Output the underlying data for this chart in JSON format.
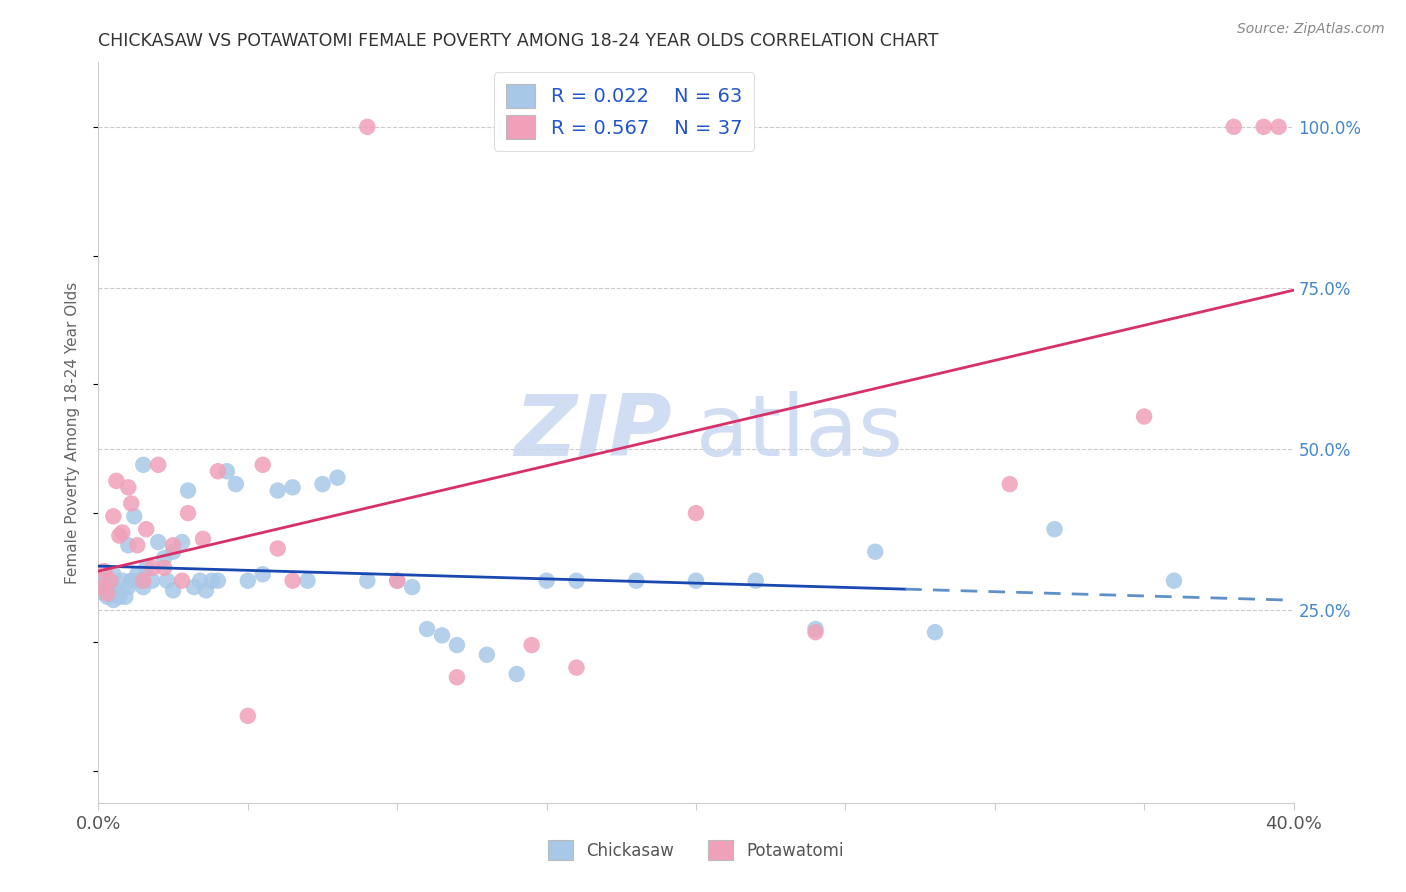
{
  "title": "CHICKASAW VS POTAWATOMI FEMALE POVERTY AMONG 18-24 YEAR OLDS CORRELATION CHART",
  "source": "Source: ZipAtlas.com",
  "ylabel": "Female Poverty Among 18-24 Year Olds",
  "xlim": [
    0.0,
    0.4
  ],
  "ylim": [
    -0.05,
    1.1
  ],
  "yticks_right": [
    0.25,
    0.5,
    0.75,
    1.0
  ],
  "yticklabels_right": [
    "25.0%",
    "50.0%",
    "75.0%",
    "100.0%"
  ],
  "xtick_positions": [
    0.0,
    0.05,
    0.1,
    0.15,
    0.2,
    0.25,
    0.3,
    0.35,
    0.4
  ],
  "xtick_left": "0.0%",
  "xtick_right": "40.0%",
  "legend_r1": "R = 0.022",
  "legend_n1": "N = 63",
  "legend_r2": "R = 0.567",
  "legend_n2": "N = 37",
  "color_chickasaw": "#a8c8e8",
  "color_potawatomi": "#f0a0b8",
  "color_line_chickasaw_solid": "#1848b0",
  "color_line_chickasaw_dash": "#6090c8",
  "color_line_potawatomi": "#d83068",
  "color_legend_text": "#2255cc",
  "color_legend_n_text": "#2255cc",
  "watermark_zip": "ZIP",
  "watermark_atlas": "atlas",
  "watermark_color": "#c8d8f0",
  "bg_color": "#ffffff",
  "grid_color": "#cccccc",
  "chickasaw_x": [
    0.001,
    0.001,
    0.002,
    0.002,
    0.003,
    0.003,
    0.004,
    0.004,
    0.005,
    0.005,
    0.006,
    0.007,
    0.008,
    0.009,
    0.01,
    0.01,
    0.011,
    0.012,
    0.013,
    0.014,
    0.015,
    0.015,
    0.016,
    0.018,
    0.02,
    0.022,
    0.023,
    0.025,
    0.025,
    0.028,
    0.03,
    0.032,
    0.034,
    0.036,
    0.038,
    0.04,
    0.043,
    0.046,
    0.05,
    0.055,
    0.06,
    0.065,
    0.07,
    0.075,
    0.08,
    0.09,
    0.1,
    0.105,
    0.11,
    0.115,
    0.12,
    0.13,
    0.14,
    0.15,
    0.16,
    0.18,
    0.2,
    0.22,
    0.24,
    0.26,
    0.28,
    0.32,
    0.36
  ],
  "chickasaw_y": [
    0.295,
    0.28,
    0.275,
    0.295,
    0.27,
    0.295,
    0.28,
    0.295,
    0.265,
    0.305,
    0.28,
    0.27,
    0.295,
    0.27,
    0.35,
    0.285,
    0.295,
    0.395,
    0.305,
    0.295,
    0.475,
    0.285,
    0.315,
    0.295,
    0.355,
    0.33,
    0.295,
    0.34,
    0.28,
    0.355,
    0.435,
    0.285,
    0.295,
    0.28,
    0.295,
    0.295,
    0.465,
    0.445,
    0.295,
    0.305,
    0.435,
    0.44,
    0.295,
    0.445,
    0.455,
    0.295,
    0.295,
    0.285,
    0.22,
    0.21,
    0.195,
    0.18,
    0.15,
    0.295,
    0.295,
    0.295,
    0.295,
    0.295,
    0.22,
    0.34,
    0.215,
    0.375,
    0.295
  ],
  "potawatomi_x": [
    0.001,
    0.002,
    0.003,
    0.004,
    0.005,
    0.006,
    0.007,
    0.008,
    0.01,
    0.011,
    0.013,
    0.015,
    0.016,
    0.018,
    0.02,
    0.022,
    0.025,
    0.028,
    0.03,
    0.035,
    0.04,
    0.05,
    0.055,
    0.06,
    0.065,
    0.09,
    0.1,
    0.12,
    0.145,
    0.16,
    0.2,
    0.24,
    0.305,
    0.35,
    0.38,
    0.39,
    0.395
  ],
  "potawatomi_y": [
    0.285,
    0.31,
    0.275,
    0.295,
    0.395,
    0.45,
    0.365,
    0.37,
    0.44,
    0.415,
    0.35,
    0.295,
    0.375,
    0.315,
    0.475,
    0.315,
    0.35,
    0.295,
    0.4,
    0.36,
    0.465,
    0.085,
    0.475,
    0.345,
    0.295,
    1.0,
    0.295,
    0.145,
    0.195,
    0.16,
    0.4,
    0.215,
    0.445,
    0.55,
    1.0,
    1.0,
    1.0
  ]
}
